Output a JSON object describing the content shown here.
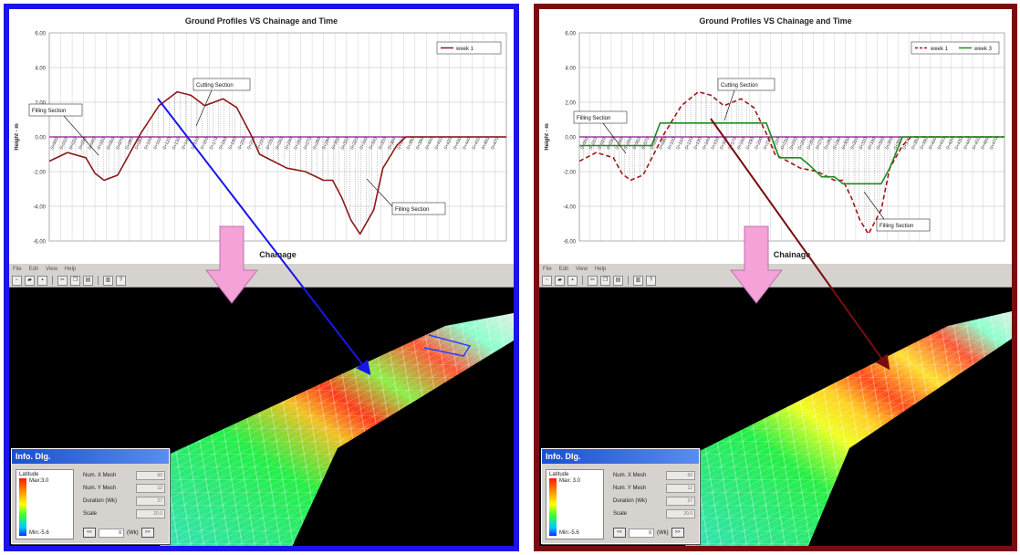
{
  "left": {
    "chart_data": {
      "type": "line",
      "title": "Ground Profiles VS Chainage and Time",
      "xlabel": "Chainage",
      "ylabel": "Height - m",
      "ylim": [
        -6,
        6
      ],
      "yticks": [
        "6.00",
        "4.00",
        "2.00",
        "0.00",
        "-2.00",
        "-4.00",
        "-6.00"
      ],
      "legend_position": "top-right",
      "grid": true,
      "series": [
        {
          "name": "week 1",
          "color": "#8b1a1a",
          "style": "solid",
          "x": [
            0,
            4,
            8,
            10,
            12,
            15,
            20,
            24,
            28,
            31,
            34,
            36,
            38,
            41,
            44,
            46,
            49,
            52,
            56,
            60,
            62,
            64,
            66,
            68,
            71,
            73,
            76,
            78,
            100
          ],
          "y": [
            -1.4,
            -0.9,
            -1.2,
            -2.1,
            -2.5,
            -2.2,
            0.2,
            1.8,
            2.6,
            2.4,
            1.8,
            2.0,
            2.2,
            1.7,
            0.2,
            -1.0,
            -1.4,
            -1.8,
            -2.0,
            -2.5,
            -2.5,
            -3.5,
            -4.8,
            -5.6,
            -4.2,
            -1.8,
            -0.5,
            0.0,
            0.0
          ]
        }
      ],
      "annotations": [
        "Filling Section",
        "Cutting Section",
        "Filling Section"
      ]
    },
    "app": {
      "menu": [
        "File",
        "Edit",
        "View",
        "Help"
      ],
      "dialog": {
        "title": "Info. Dlg.",
        "legend_caption": "Latitude",
        "legend_max": "Max:3.0",
        "legend_min": "Min:-5.6",
        "fields": [
          {
            "label": "Num. X Mesh",
            "value": "60"
          },
          {
            "label": "Num. Y Mesh",
            "value": "12"
          },
          {
            "label": "Duration (Wk)",
            "value": "27"
          },
          {
            "label": "Scale",
            "value": "20.0"
          }
        ],
        "nav_prev": "<<",
        "nav_value": "0",
        "nav_unit": "(Wk)",
        "nav_next": ">>"
      }
    }
  },
  "right": {
    "chart_data": {
      "type": "line",
      "title": "Ground Profiles VS Chainage and Time",
      "xlabel": "Chainage",
      "ylabel": "Height - m",
      "ylim": [
        -6,
        6
      ],
      "yticks": [
        "6.00",
        "4.00",
        "2.00",
        "0.00",
        "-2.00",
        "-4.00",
        "-6.00"
      ],
      "legend_position": "top-right",
      "grid": true,
      "series": [
        {
          "name": "week 1",
          "color": "#a01818",
          "style": "dashed",
          "x": [
            0,
            4,
            8,
            10,
            12,
            15,
            20,
            24,
            28,
            31,
            34,
            36,
            38,
            41,
            44,
            46,
            49,
            52,
            56,
            60,
            62,
            64,
            66,
            68,
            71,
            73,
            76,
            78,
            100
          ],
          "y": [
            -1.4,
            -0.9,
            -1.2,
            -2.1,
            -2.5,
            -2.2,
            0.2,
            1.8,
            2.6,
            2.4,
            1.8,
            2.0,
            2.2,
            1.7,
            0.2,
            -1.0,
            -1.4,
            -1.8,
            -2.0,
            -2.5,
            -2.5,
            -3.5,
            -4.8,
            -5.6,
            -4.2,
            -1.8,
            -0.5,
            0.0,
            0.0
          ]
        },
        {
          "name": "week 3",
          "color": "#1f8a1f",
          "style": "solid",
          "x": [
            0,
            14,
            17,
            19,
            44,
            47,
            52,
            54,
            57,
            60,
            62,
            71,
            73,
            76,
            100
          ],
          "y": [
            -0.5,
            -0.5,
            -0.5,
            0.8,
            0.8,
            -1.2,
            -1.2,
            -1.6,
            -2.3,
            -2.3,
            -2.7,
            -2.7,
            -1.8,
            0.0,
            0.0
          ]
        }
      ],
      "annotations": [
        "Filling Section",
        "Cutting Section",
        "Filling Section"
      ]
    },
    "app": {
      "menu": [
        "File",
        "Edit",
        "View",
        "Help"
      ],
      "dialog": {
        "title": "Info. Dlg.",
        "legend_caption": "Latitude",
        "legend_max": "Max: 3.0",
        "legend_min": "Min:-5.6",
        "fields": [
          {
            "label": "Num. X Mesh",
            "value": "60"
          },
          {
            "label": "Num. Y Mesh",
            "value": "12"
          },
          {
            "label": "Duration (Wk)",
            "value": "27"
          },
          {
            "label": "Scale",
            "value": "20.0"
          }
        ],
        "nav_prev": "<<",
        "nav_value": "0",
        "nav_unit": "(Wk)",
        "nav_next": ">>"
      }
    }
  }
}
